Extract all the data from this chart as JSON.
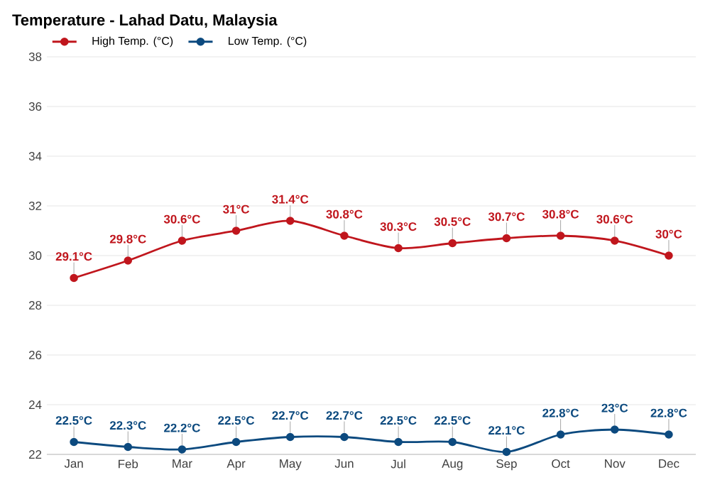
{
  "chart_data": {
    "type": "line",
    "title": "Temperature - Lahad Datu, Malaysia",
    "categories": [
      "Jan",
      "Feb",
      "Mar",
      "Apr",
      "May",
      "Jun",
      "Jul",
      "Aug",
      "Sep",
      "Oct",
      "Nov",
      "Dec"
    ],
    "series": [
      {
        "name": "High Temp. (°C)",
        "color": "#c0161d",
        "values": [
          29.1,
          29.8,
          30.6,
          31,
          31.4,
          30.8,
          30.3,
          30.5,
          30.7,
          30.8,
          30.6,
          30
        ],
        "value_labels": [
          "29.1°C",
          "29.8°C",
          "30.6°C",
          "31°C",
          "31.4°C",
          "30.8°C",
          "30.3°C",
          "30.5°C",
          "30.7°C",
          "30.8°C",
          "30.6°C",
          "30°C"
        ]
      },
      {
        "name": "Low Temp. (°C)",
        "color": "#0c4a7f",
        "values": [
          22.5,
          22.3,
          22.2,
          22.5,
          22.7,
          22.7,
          22.5,
          22.5,
          22.1,
          22.8,
          23,
          22.8
        ],
        "value_labels": [
          "22.5°C",
          "22.3°C",
          "22.2°C",
          "22.5°C",
          "22.7°C",
          "22.7°C",
          "22.5°C",
          "22.5°C",
          "22.1°C",
          "22.8°C",
          "23°C",
          "22.8°C"
        ]
      }
    ],
    "ylim": [
      22,
      38
    ],
    "yticks": [
      22,
      24,
      26,
      28,
      30,
      32,
      34,
      36,
      38
    ],
    "grid": "y",
    "legend": "top left",
    "marker": "circle",
    "line_style": "solid"
  }
}
